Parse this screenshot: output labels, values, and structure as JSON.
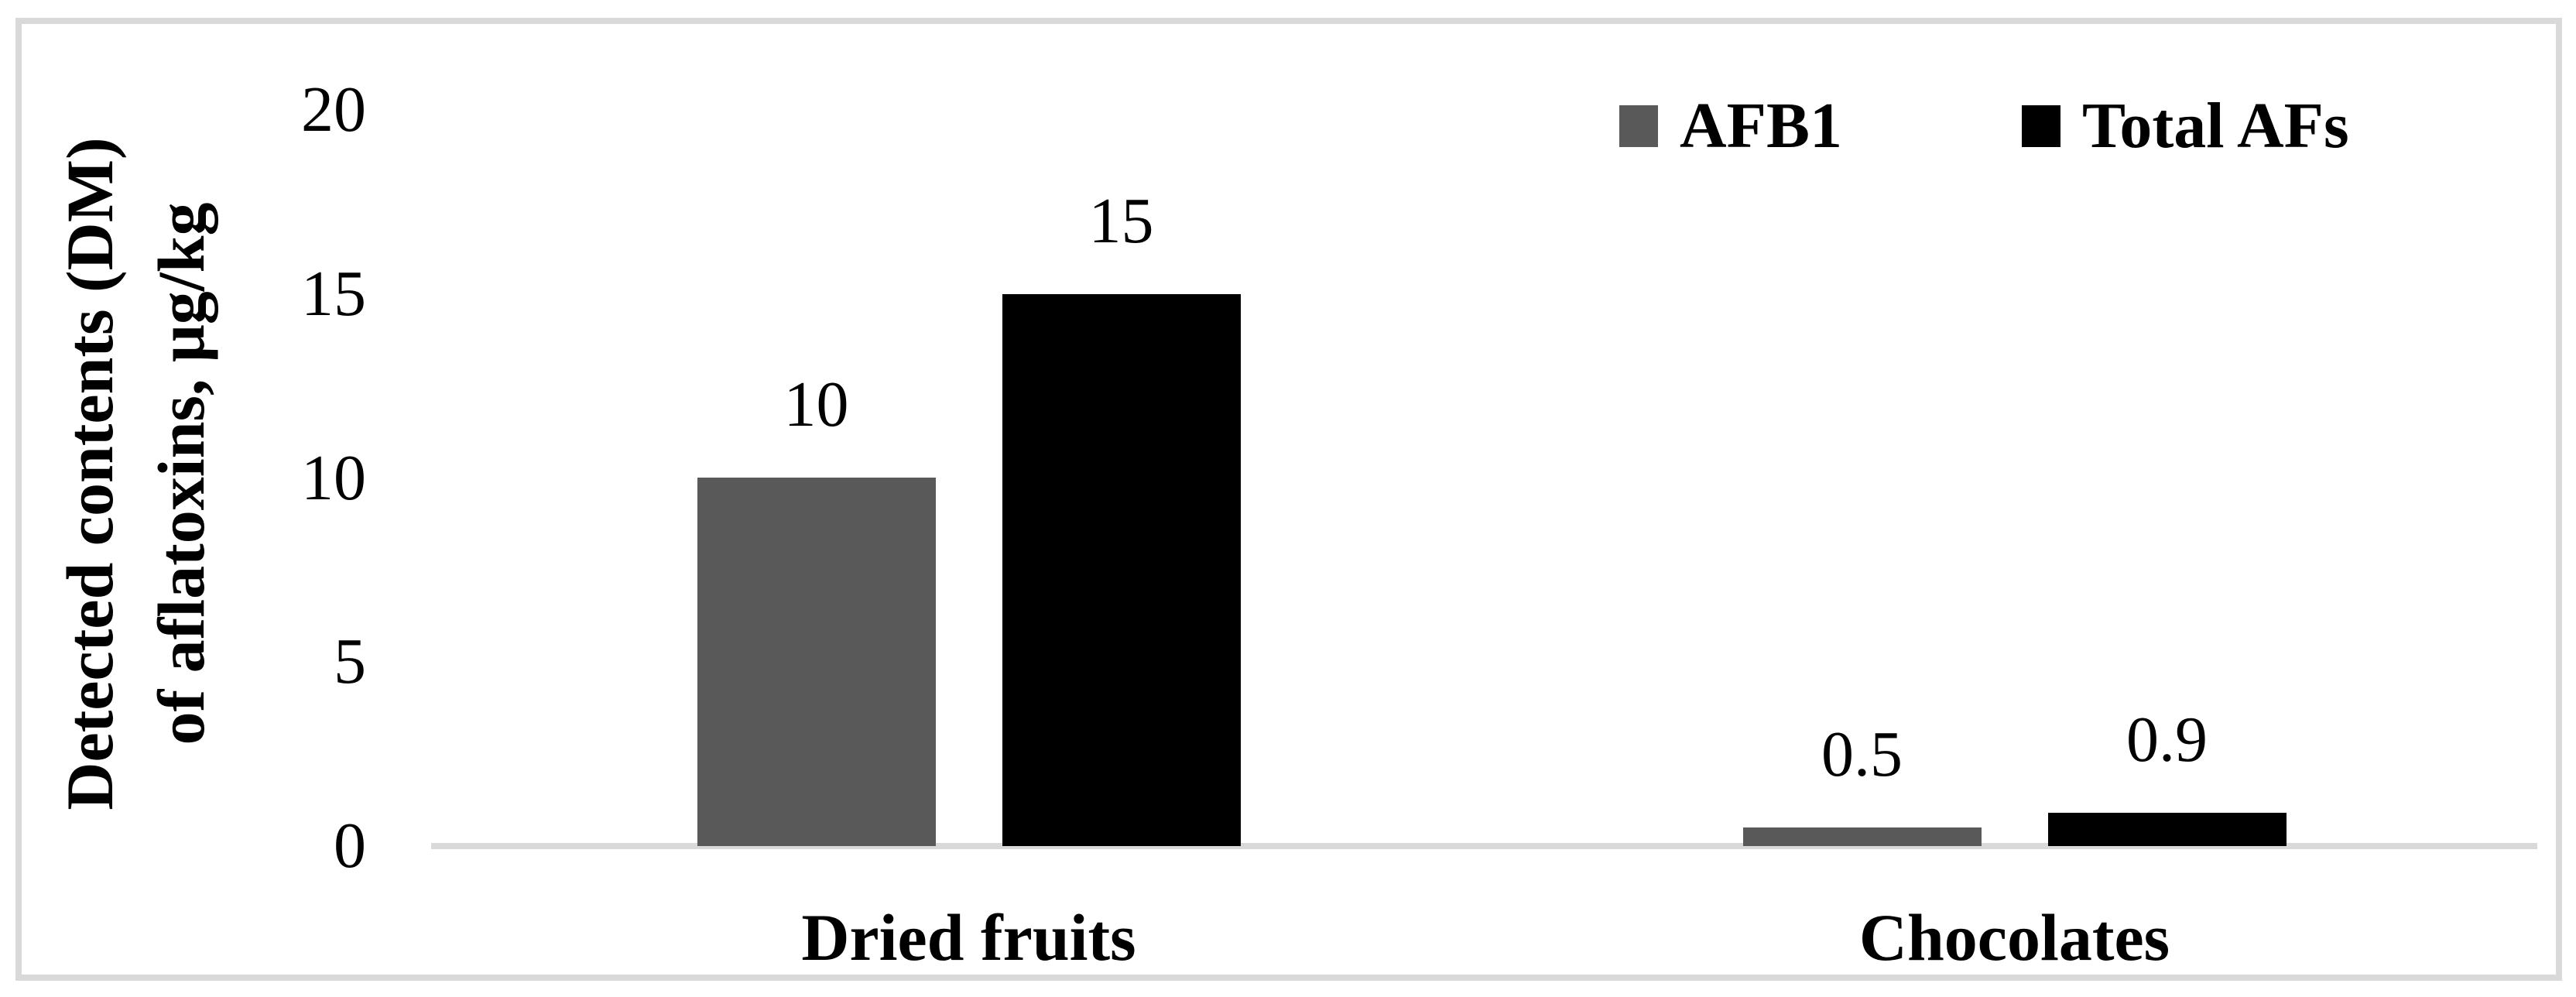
{
  "chart_data": {
    "type": "bar",
    "title": "",
    "categories": [
      "Dried fruits",
      "Chocolates"
    ],
    "series": [
      {
        "name": "AFB1",
        "color": "#595959",
        "values": [
          10,
          0.5
        ],
        "labels": [
          "10",
          "0.5"
        ]
      },
      {
        "name": "Total AFs",
        "color": "#000000",
        "values": [
          15,
          0.9
        ],
        "labels": [
          "15",
          "0.9"
        ]
      }
    ],
    "ylabel_lines": [
      "Detected contents (DM)",
      "of aflatoxins, μg/kg"
    ],
    "yticks": [
      "0",
      "5",
      "10",
      "15",
      "20"
    ],
    "ytick_values": [
      0,
      5,
      10,
      15,
      20
    ],
    "ylim": [
      0,
      20
    ],
    "grid": false,
    "legend_position": "top-right",
    "axis_color": "#D9D9D9",
    "frame_color": "#D9D9D9",
    "text_color": "#000000",
    "background_color": "#ffffff"
  }
}
